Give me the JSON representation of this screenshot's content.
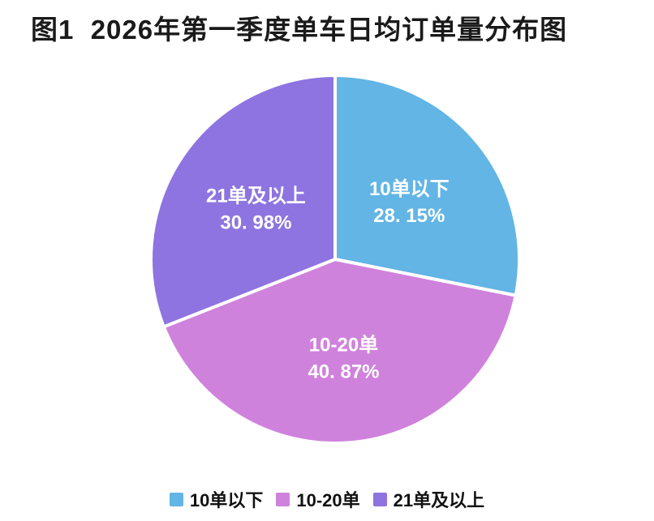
{
  "page": {
    "background": "#ffffff"
  },
  "chart_data": {
    "type": "pie",
    "title": "图1  2026年第一季度单车日均订单量分布图",
    "categories": [
      "10单以下",
      "10-20单",
      "21单及以上"
    ],
    "values": [
      28.15,
      40.87,
      30.98
    ],
    "percent_labels": [
      "28. 15%",
      "40. 87%",
      "30. 98%"
    ],
    "colors": [
      "#62B5E5",
      "#CF82DC",
      "#8E74E0"
    ],
    "start_angle_deg": 0,
    "direction": "clockwise",
    "slice_gap_color": "#ffffff",
    "label_color": "#ffffff",
    "legend_position": "bottom",
    "legend_entries": [
      "10单以下",
      "10-20单",
      "21单及以上"
    ]
  }
}
